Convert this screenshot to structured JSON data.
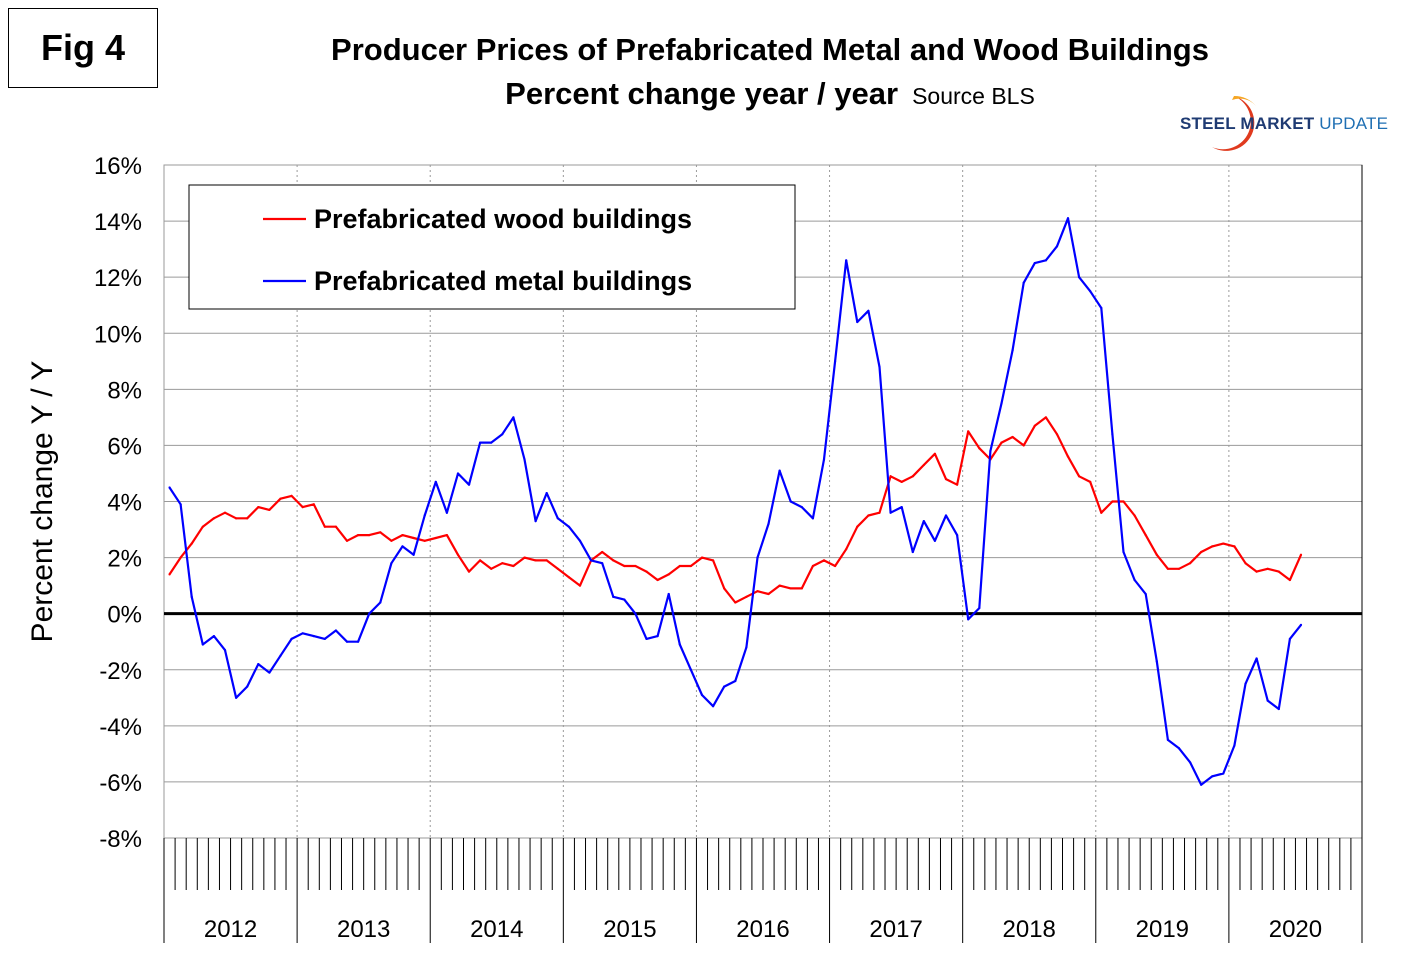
{
  "figure": {
    "label": "Fig 4",
    "title": "Producer Prices of Prefabricated Metal and Wood Buildings",
    "subtitle": "Percent change year / year",
    "source": "Source BLS"
  },
  "logo": {
    "word1": "STEEL",
    "word2": "MARKET",
    "word3": "UPDATE",
    "colors": {
      "swoosh_red": "#e03a1e",
      "swoosh_orange": "#f5a623",
      "text_navy": "#1f3b73",
      "text_blue": "#1f6fb3"
    }
  },
  "chart_data": {
    "type": "line",
    "title": "Producer Prices of Prefabricated Metal and Wood Buildings",
    "subtitle": "Percent change year / year",
    "xlabel": "",
    "ylabel": "Percent change Y / Y",
    "ylim": [
      -8,
      16
    ],
    "ytick_step": 2,
    "yticks": [
      "16%",
      "14%",
      "12%",
      "10%",
      "8%",
      "6%",
      "4%",
      "2%",
      "0%",
      "-2%",
      "-4%",
      "-6%",
      "-8%"
    ],
    "x_unit": "month",
    "x_start": "2012-01",
    "x_end": "2020-12",
    "year_labels": [
      "2012",
      "2013",
      "2014",
      "2015",
      "2016",
      "2017",
      "2018",
      "2019",
      "2020"
    ],
    "grid": true,
    "zero_line": true,
    "legend_position": "top-left",
    "series": [
      {
        "name": "Prefabricated wood buildings",
        "color": "#ff0000",
        "values": [
          1.4,
          2.0,
          2.5,
          3.1,
          3.4,
          3.6,
          3.4,
          3.4,
          3.8,
          3.7,
          4.1,
          4.2,
          3.8,
          3.9,
          3.1,
          3.1,
          2.6,
          2.8,
          2.8,
          2.9,
          2.6,
          2.8,
          2.7,
          2.6,
          2.7,
          2.8,
          2.1,
          1.5,
          1.9,
          1.6,
          1.8,
          1.7,
          2.0,
          1.9,
          1.9,
          1.6,
          1.3,
          1.0,
          1.9,
          2.2,
          1.9,
          1.7,
          1.7,
          1.5,
          1.2,
          1.4,
          1.7,
          1.7,
          2.0,
          1.9,
          0.9,
          0.4,
          0.6,
          0.8,
          0.7,
          1.0,
          0.9,
          0.9,
          1.7,
          1.9,
          1.7,
          2.3,
          3.1,
          3.5,
          3.6,
          4.9,
          4.7,
          4.9,
          5.3,
          5.7,
          4.8,
          4.6,
          6.5,
          5.9,
          5.5,
          6.1,
          6.3,
          6.0,
          6.7,
          7.0,
          6.4,
          5.6,
          4.9,
          4.7,
          3.6,
          4.0,
          4.0,
          3.5,
          2.8,
          2.1,
          1.6,
          1.6,
          1.8,
          2.2,
          2.4,
          2.5,
          2.4,
          1.8,
          1.5,
          1.6,
          1.5,
          1.2,
          2.1
        ]
      },
      {
        "name": "Prefabricated metal buildings",
        "color": "#0000ff",
        "values": [
          4.5,
          3.9,
          0.6,
          -1.1,
          -0.8,
          -1.3,
          -3.0,
          -2.6,
          -1.8,
          -2.1,
          -1.5,
          -0.9,
          -0.7,
          -0.8,
          -0.9,
          -0.6,
          -1.0,
          -1.0,
          0.0,
          0.4,
          1.8,
          2.4,
          2.1,
          3.5,
          4.7,
          3.6,
          5.0,
          4.6,
          6.1,
          6.1,
          6.4,
          7.0,
          5.5,
          3.3,
          4.3,
          3.4,
          3.1,
          2.6,
          1.9,
          1.8,
          0.6,
          0.5,
          0.0,
          -0.9,
          -0.8,
          0.7,
          -1.1,
          -2.0,
          -2.9,
          -3.3,
          -2.6,
          -2.4,
          -1.2,
          2.0,
          3.2,
          5.1,
          4.0,
          3.8,
          3.4,
          5.5,
          9.0,
          12.6,
          10.4,
          10.8,
          8.8,
          3.6,
          3.8,
          2.2,
          3.3,
          2.6,
          3.5,
          2.8,
          -0.2,
          0.2,
          5.8,
          7.5,
          9.4,
          11.8,
          12.5,
          12.6,
          13.1,
          14.1,
          12.0,
          11.5,
          10.9,
          6.4,
          2.2,
          1.2,
          0.7,
          -1.7,
          -4.5,
          -4.8,
          -5.3,
          -6.1,
          -5.8,
          -5.7,
          -4.7,
          -2.5,
          -1.6,
          -3.1,
          -3.4,
          -0.9,
          -0.4
        ]
      }
    ]
  }
}
